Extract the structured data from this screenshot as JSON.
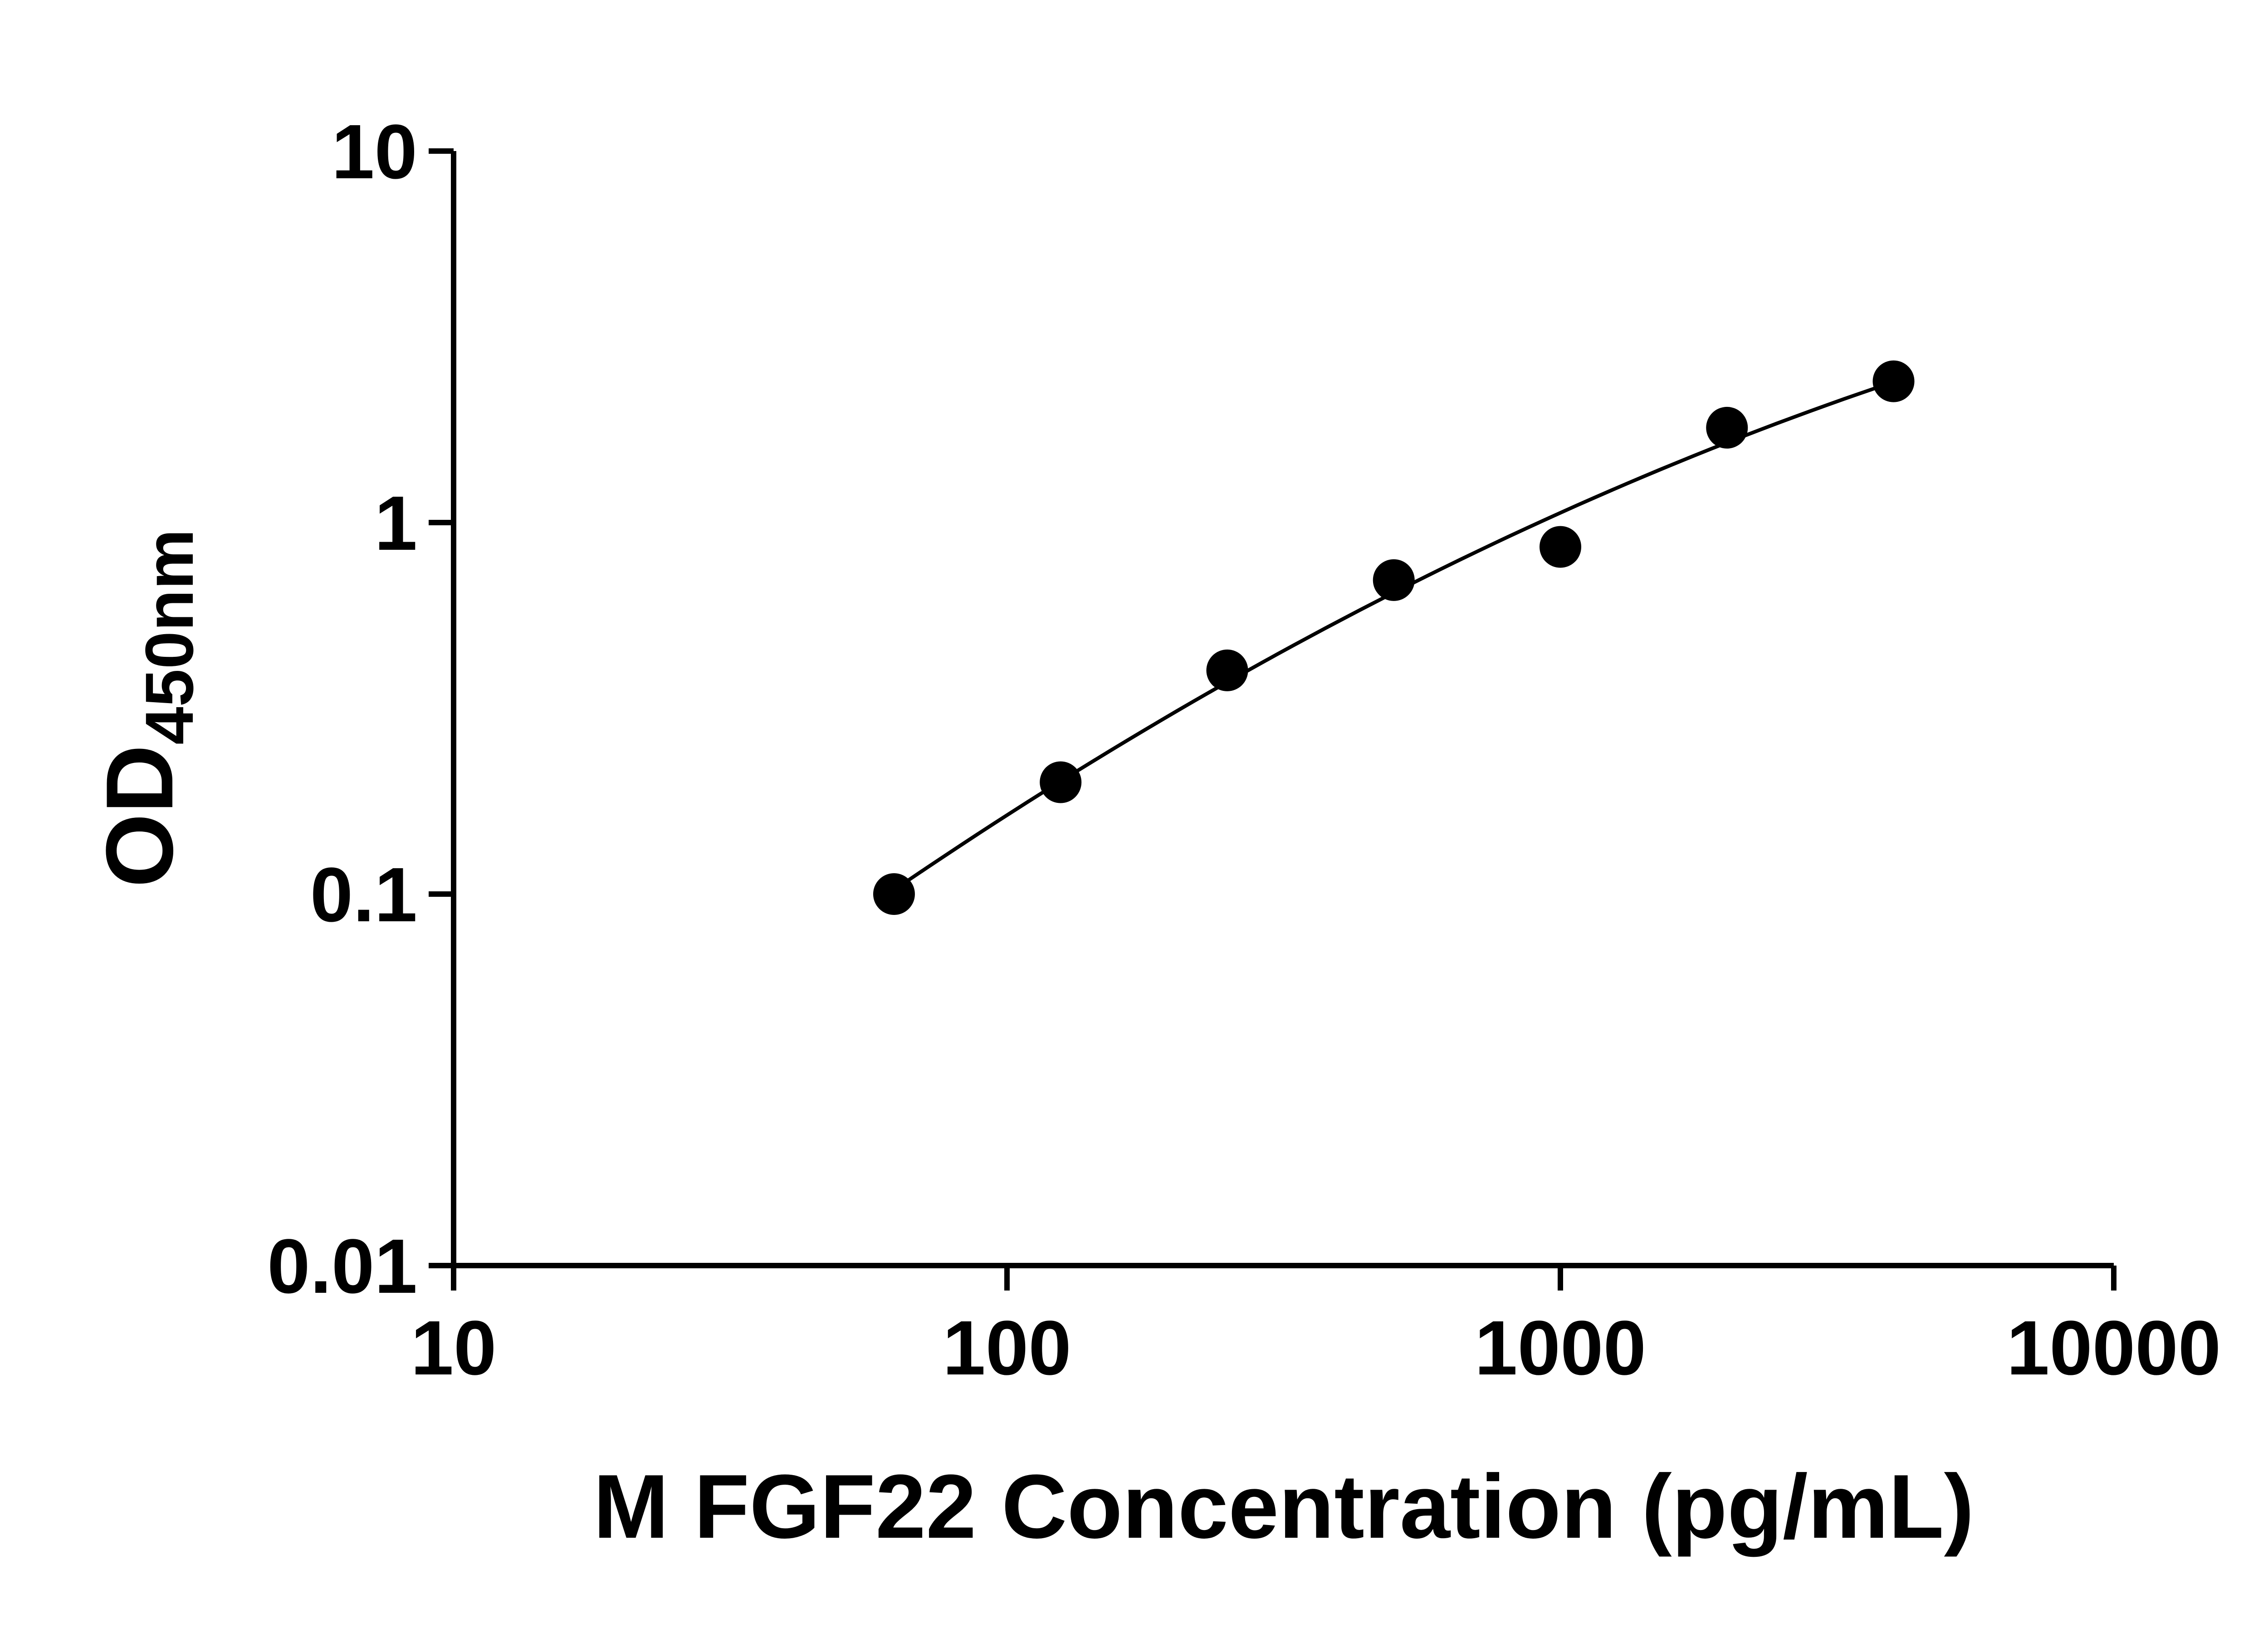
{
  "figure": {
    "background_color": "#ffffff"
  },
  "chart_data": {
    "type": "scatter",
    "title": "",
    "xlabel": "M FGF22 Concentration (pg/mL)",
    "ylabel_main": "OD",
    "ylabel_sub": "450nm",
    "x_scale": "log10",
    "y_scale": "log10",
    "xlim": [
      10,
      10000
    ],
    "ylim": [
      0.01,
      10
    ],
    "grid": false,
    "legend": "none",
    "x_ticks": [
      {
        "value": 10,
        "label": "10"
      },
      {
        "value": 100,
        "label": "100"
      },
      {
        "value": 1000,
        "label": "1000"
      },
      {
        "value": 10000,
        "label": "10000"
      }
    ],
    "y_ticks": [
      {
        "value": 10,
        "label": "10"
      },
      {
        "value": 1,
        "label": "1"
      },
      {
        "value": 0.1,
        "label": "0.1"
      },
      {
        "value": 0.01,
        "label": "0.01"
      }
    ],
    "points": [
      {
        "x": 62.5,
        "y": 0.1
      },
      {
        "x": 125,
        "y": 0.2
      },
      {
        "x": 250,
        "y": 0.4
      },
      {
        "x": 500,
        "y": 0.7
      },
      {
        "x": 1000,
        "y": 0.86
      },
      {
        "x": 2000,
        "y": 1.8
      },
      {
        "x": 4000,
        "y": 2.4
      }
    ],
    "fit": {
      "type": "quadratic_log10",
      "a": -0.1886,
      "b": 0.757,
      "c": -0.143,
      "u_center": 2.699,
      "x_range": [
        62.5,
        4000
      ]
    },
    "marker": {
      "shape": "circle",
      "radius_px": 46,
      "color": "#000000"
    },
    "colors": {
      "axis": "#000000",
      "curve": "#000000",
      "points": "#000000",
      "background": "#ffffff",
      "text": "#000000"
    }
  }
}
